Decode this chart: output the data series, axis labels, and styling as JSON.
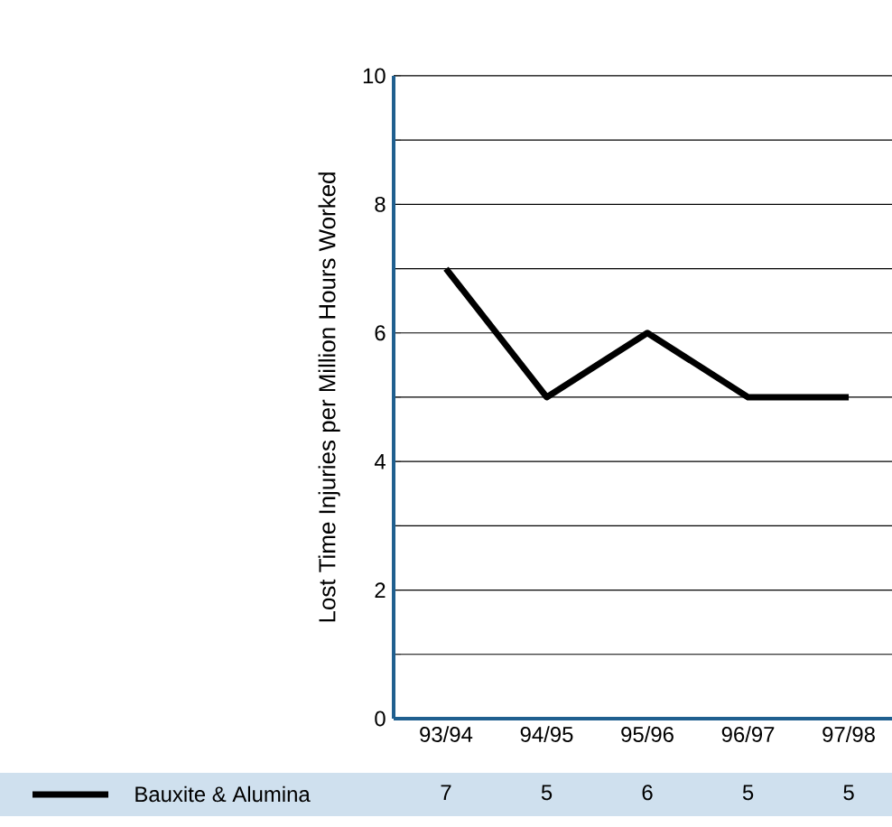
{
  "chart_data": {
    "type": "line",
    "ylabel": "Lost Time Injuries per Million Hours Worked",
    "categories": [
      "93/94",
      "94/95",
      "95/96",
      "96/97",
      "97/98"
    ],
    "series": [
      {
        "name": "Bauxite & Alumina",
        "color": "#000000",
        "values": [
          7,
          5,
          6,
          5,
          5
        ]
      }
    ],
    "ylim": [
      0,
      10
    ],
    "yticks": [
      0,
      {
        "value": 1,
        "label": null
      },
      2,
      {
        "value": 3,
        "label": null
      },
      4,
      {
        "value": 5,
        "label": null
      },
      6,
      {
        "value": 7,
        "label": null
      },
      8,
      {
        "value": 9,
        "label": null
      },
      10
    ],
    "grid": "y",
    "legend": "bottom",
    "data_labels": true,
    "marker": "none",
    "line_style": "solid"
  }
}
